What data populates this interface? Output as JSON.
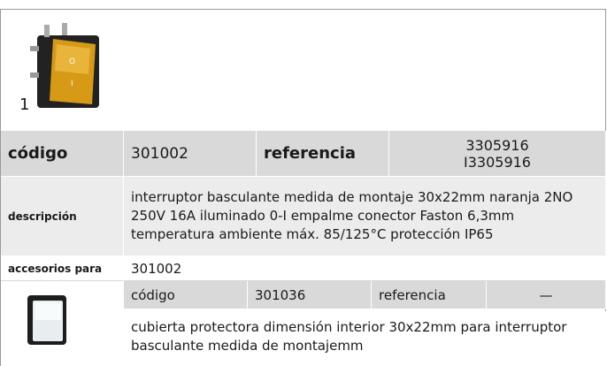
{
  "image_label": "1",
  "product": {
    "code_label": "código",
    "code": "301002",
    "ref_label": "referencia",
    "refs": [
      "3305916",
      "I3305916"
    ],
    "desc_label": "descripción",
    "desc": "interruptor basculante  medida de montaje 30x22mm naranja 2NO 250V 16A iluminado 0-I empalme conector Faston 6,3mm temperatura ambiente máx. 85/125°C protección IP65"
  },
  "accessories": {
    "label": "accesorios para",
    "for": "301002",
    "items": [
      {
        "code_label": "código",
        "code": "301036",
        "ref_label": "referencia",
        "ref": "—",
        "desc": "cubierta protectora  dimensión interior 30x22mm para interruptor basculante medida de montajemm"
      }
    ]
  }
}
